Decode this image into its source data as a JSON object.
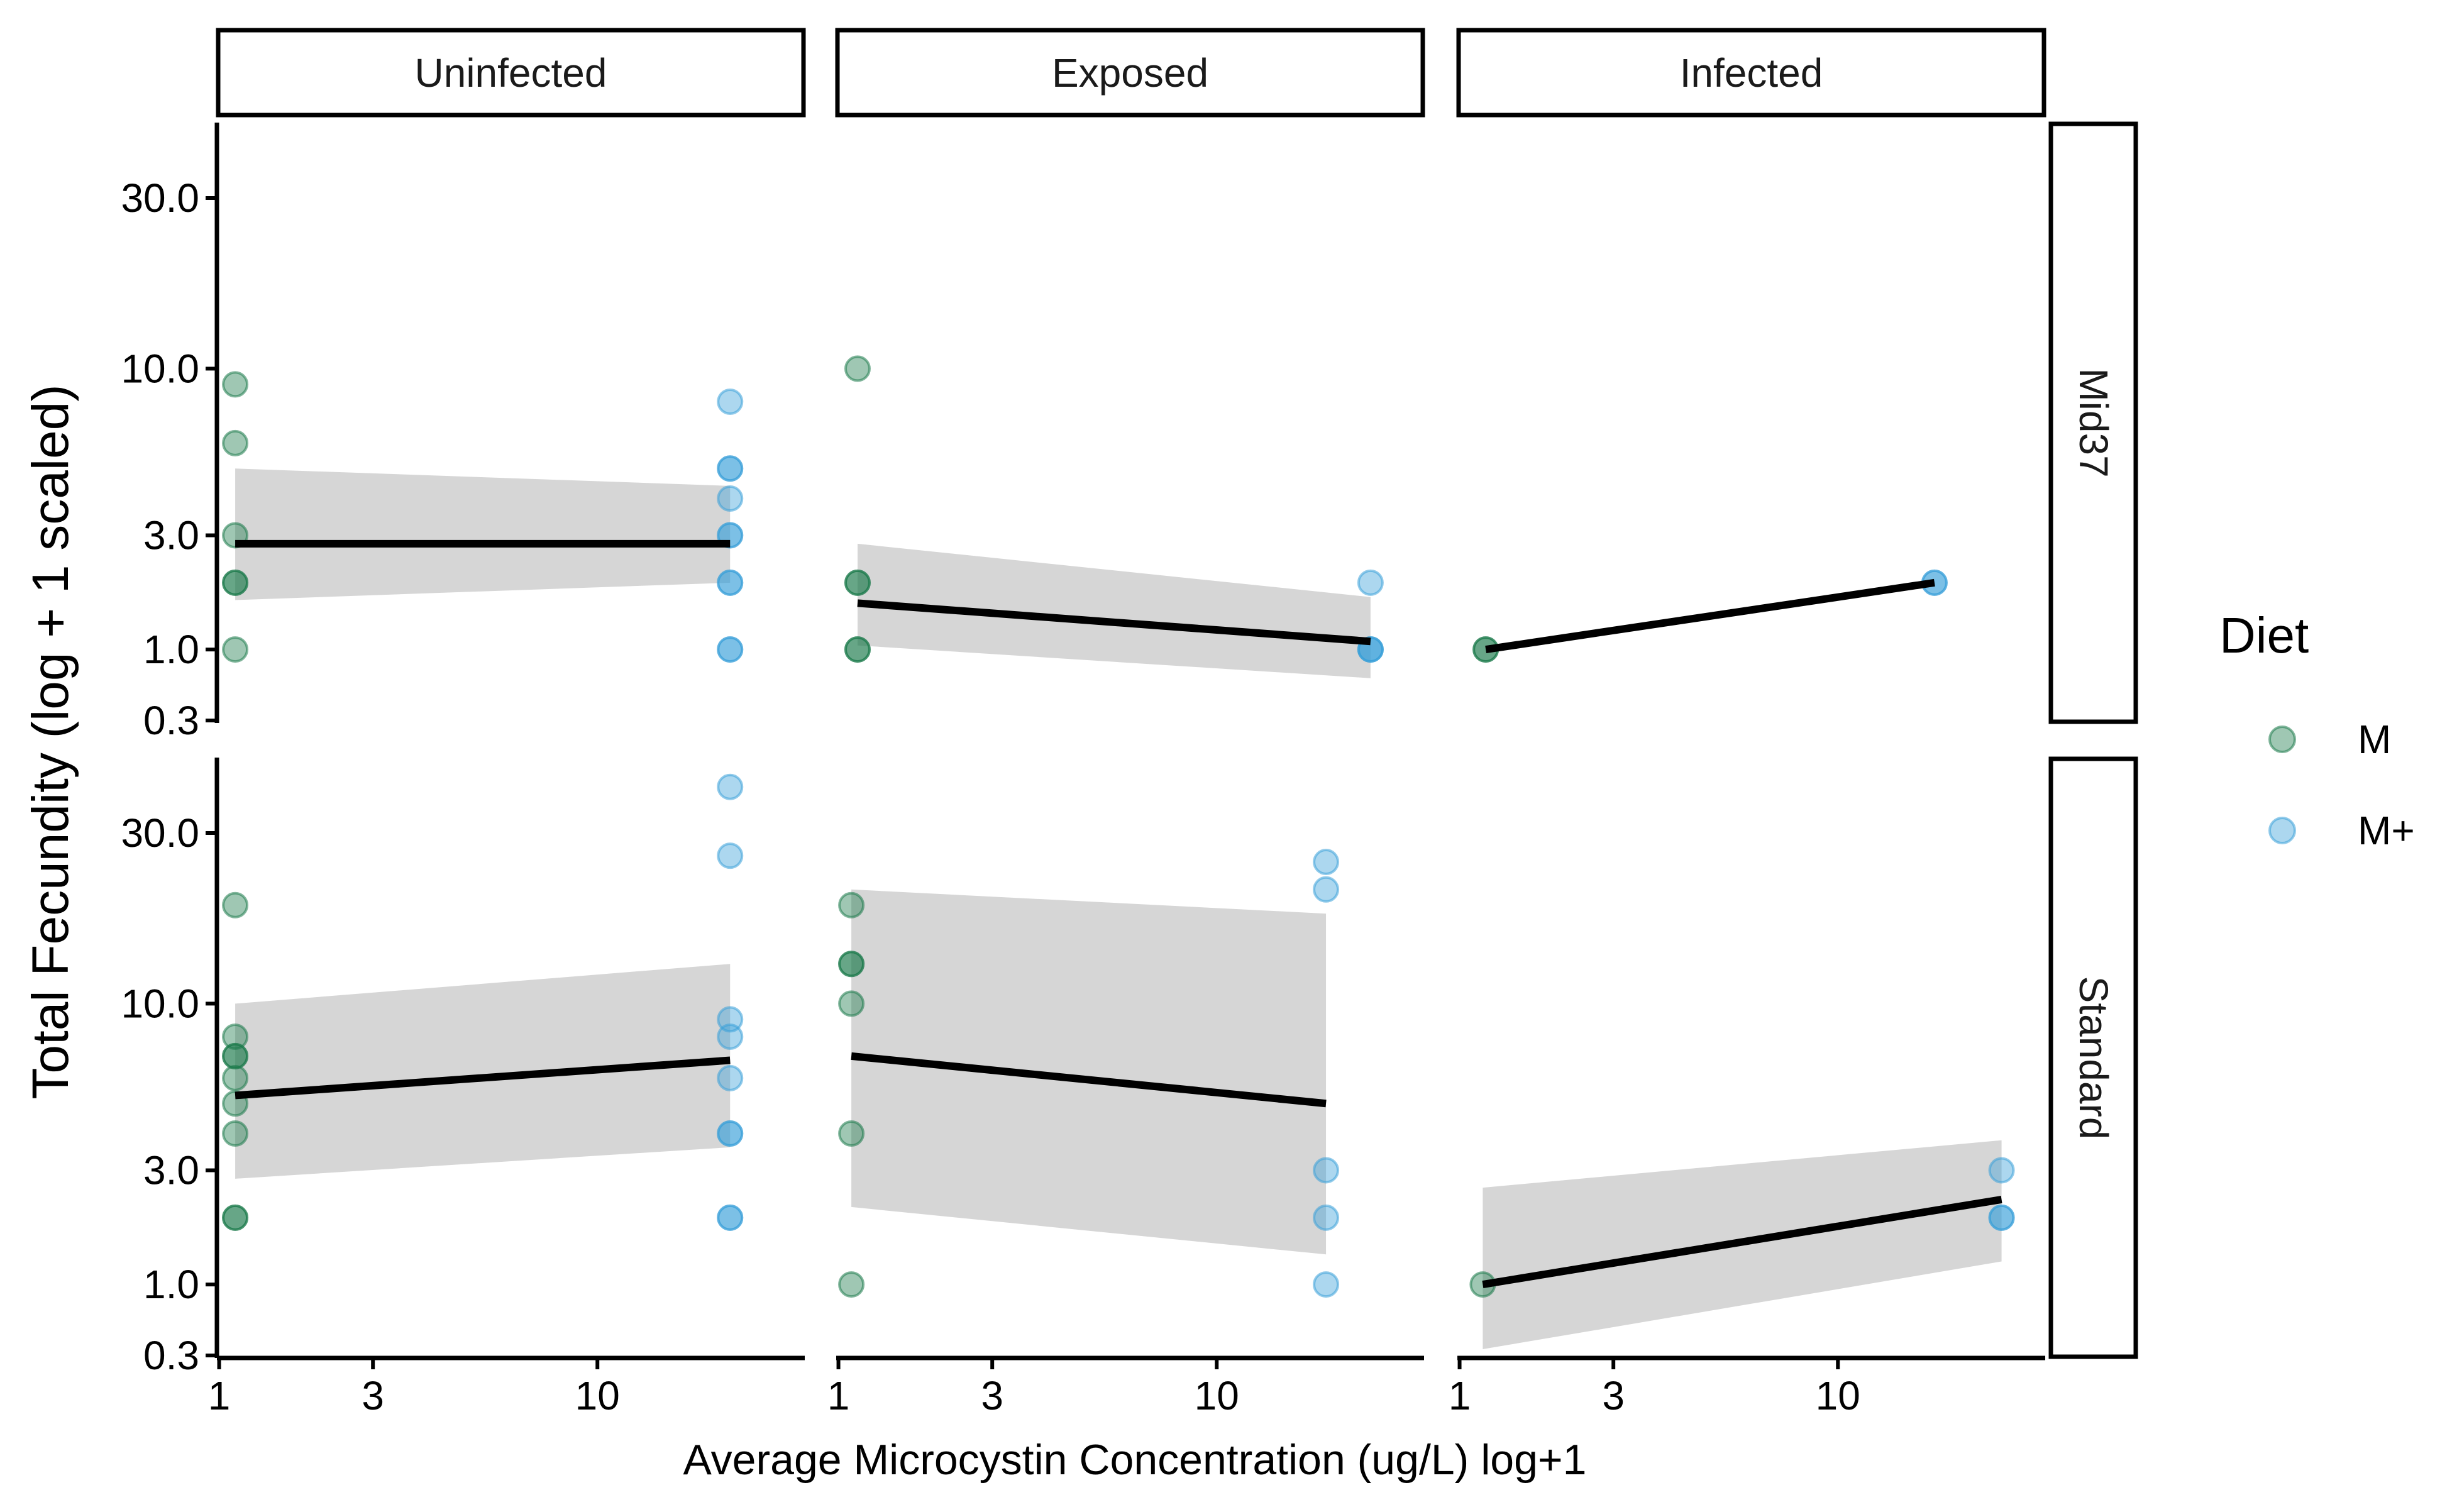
{
  "chart_data": {
    "type": "scatter",
    "title": "",
    "xlabel": "Average Microcystin Concentration (ug/L) log+1",
    "ylabel": "Total Fecundity (log + 1 scaled)",
    "x_scale": "log(x+1)",
    "y_scale": "log(y+1)",
    "x_ticks": [
      1,
      3,
      10
    ],
    "y_ticks": [
      0.3,
      1.0,
      3.0,
      10.0,
      30.0
    ],
    "y_tick_labels": [
      "0.3",
      "1.0",
      "3.0",
      "10.0",
      "30.0"
    ],
    "x_tick_labels": [
      "1",
      "3",
      "10"
    ],
    "xlim": [
      0.98,
      27
    ],
    "ylim": [
      0.28,
      48
    ],
    "columns": [
      "Uninfected",
      "Exposed",
      "Infected"
    ],
    "rows": [
      "Mid37",
      "Standard"
    ],
    "legend": {
      "title": "Diet",
      "position": "right",
      "entries": [
        {
          "label": "M",
          "color": "#1b7a4a"
        },
        {
          "label": "M+",
          "color": "#3aa0d8"
        }
      ]
    },
    "colors": {
      "M": "#1b7a4a",
      "M+": "#3aa0d8",
      "ribbon": "#d6d6d6",
      "fit": "#000000"
    },
    "panels": [
      {
        "row": "Mid37",
        "column": "Uninfected",
        "points": [
          {
            "diet": "M",
            "x": 1.15,
            "y": 9
          },
          {
            "diet": "M",
            "x": 1.15,
            "y": 6
          },
          {
            "diet": "M",
            "x": 1.15,
            "y": 3
          },
          {
            "diet": "M",
            "x": 1.15,
            "y": 2
          },
          {
            "diet": "M",
            "x": 1.15,
            "y": 2
          },
          {
            "diet": "M",
            "x": 1.15,
            "y": 1
          },
          {
            "diet": "M+",
            "x": 19,
            "y": 8
          },
          {
            "diet": "M+",
            "x": 19,
            "y": 5
          },
          {
            "diet": "M+",
            "x": 19,
            "y": 5
          },
          {
            "diet": "M+",
            "x": 19,
            "y": 4
          },
          {
            "diet": "M+",
            "x": 19,
            "y": 3
          },
          {
            "diet": "M+",
            "x": 19,
            "y": 3
          },
          {
            "diet": "M+",
            "x": 19,
            "y": 2
          },
          {
            "diet": "M+",
            "x": 19,
            "y": 2
          },
          {
            "diet": "M+",
            "x": 19,
            "y": 1
          },
          {
            "diet": "M+",
            "x": 19,
            "y": 1
          }
        ],
        "fit": {
          "x": [
            1.15,
            19
          ],
          "y": [
            2.8,
            2.8
          ],
          "lower": [
            1.7,
            2.0
          ],
          "upper": [
            5.0,
            4.4
          ]
        }
      },
      {
        "row": "Mid37",
        "column": "Exposed",
        "points": [
          {
            "diet": "M",
            "x": 1.18,
            "y": 10
          },
          {
            "diet": "M",
            "x": 1.18,
            "y": 2
          },
          {
            "diet": "M",
            "x": 1.18,
            "y": 2
          },
          {
            "diet": "M",
            "x": 1.18,
            "y": 1
          },
          {
            "diet": "M",
            "x": 1.18,
            "y": 1
          },
          {
            "diet": "M+",
            "x": 21,
            "y": 2
          },
          {
            "diet": "M+",
            "x": 21,
            "y": 1
          },
          {
            "diet": "M+",
            "x": 21,
            "y": 1
          },
          {
            "diet": "M+",
            "x": 21,
            "y": 1
          }
        ],
        "fit": {
          "x": [
            1.18,
            21
          ],
          "y": [
            1.65,
            1.1
          ],
          "lower": [
            1.05,
            0.68
          ],
          "upper": [
            2.8,
            1.75
          ]
        }
      },
      {
        "row": "Mid37",
        "column": "Infected",
        "points": [
          {
            "diet": "M",
            "x": 1.25,
            "y": 1
          },
          {
            "diet": "M",
            "x": 1.25,
            "y": 1
          },
          {
            "diet": "M+",
            "x": 16,
            "y": 2
          },
          {
            "diet": "M+",
            "x": 16,
            "y": 2
          }
        ],
        "fit": {
          "x": [
            1.25,
            16
          ],
          "y": [
            1.0,
            2.0
          ]
        }
      },
      {
        "row": "Standard",
        "column": "Uninfected",
        "points": [
          {
            "diet": "M",
            "x": 1.15,
            "y": 19
          },
          {
            "diet": "M",
            "x": 1.15,
            "y": 8
          },
          {
            "diet": "M",
            "x": 1.15,
            "y": 7
          },
          {
            "diet": "M",
            "x": 1.15,
            "y": 7
          },
          {
            "diet": "M",
            "x": 1.15,
            "y": 6
          },
          {
            "diet": "M",
            "x": 1.15,
            "y": 5
          },
          {
            "diet": "M",
            "x": 1.15,
            "y": 4
          },
          {
            "diet": "M",
            "x": 1.15,
            "y": 2
          },
          {
            "diet": "M",
            "x": 1.15,
            "y": 2
          },
          {
            "diet": "M+",
            "x": 19,
            "y": 40
          },
          {
            "diet": "M+",
            "x": 19,
            "y": 26
          },
          {
            "diet": "M+",
            "x": 19,
            "y": 9
          },
          {
            "diet": "M+",
            "x": 19,
            "y": 8
          },
          {
            "diet": "M+",
            "x": 19,
            "y": 6
          },
          {
            "diet": "M+",
            "x": 19,
            "y": 4
          },
          {
            "diet": "M+",
            "x": 19,
            "y": 4
          },
          {
            "diet": "M+",
            "x": 19,
            "y": 2
          },
          {
            "diet": "M+",
            "x": 19,
            "y": 2
          }
        ],
        "fit": {
          "x": [
            1.15,
            19
          ],
          "y": [
            5.3,
            6.8
          ],
          "lower": [
            2.8,
            3.6
          ],
          "upper": [
            10.0,
            13.0
          ]
        }
      },
      {
        "row": "Standard",
        "column": "Exposed",
        "points": [
          {
            "diet": "M",
            "x": 1.12,
            "y": 19
          },
          {
            "diet": "M",
            "x": 1.12,
            "y": 13
          },
          {
            "diet": "M",
            "x": 1.12,
            "y": 13
          },
          {
            "diet": "M",
            "x": 1.12,
            "y": 10
          },
          {
            "diet": "M",
            "x": 1.12,
            "y": 4
          },
          {
            "diet": "M",
            "x": 1.12,
            "y": 1
          },
          {
            "diet": "M+",
            "x": 17,
            "y": 25
          },
          {
            "diet": "M+",
            "x": 17,
            "y": 21
          },
          {
            "diet": "M+",
            "x": 17,
            "y": 3
          },
          {
            "diet": "M+",
            "x": 17,
            "y": 2
          },
          {
            "diet": "M+",
            "x": 17,
            "y": 1
          }
        ],
        "fit": {
          "x": [
            1.12,
            17
          ],
          "y": [
            7.0,
            5.0
          ],
          "lower": [
            2.2,
            1.4
          ],
          "upper": [
            21.0,
            18.0
          ]
        }
      },
      {
        "row": "Standard",
        "column": "Infected",
        "points": [
          {
            "diet": "M",
            "x": 1.22,
            "y": 1
          },
          {
            "diet": "M+",
            "x": 22,
            "y": 3
          },
          {
            "diet": "M+",
            "x": 22,
            "y": 2
          },
          {
            "diet": "M+",
            "x": 22,
            "y": 2
          }
        ],
        "fit": {
          "x": [
            1.22,
            22
          ],
          "y": [
            1.0,
            2.35
          ],
          "lower": [
            0.35,
            1.3
          ],
          "upper": [
            2.6,
            3.8
          ]
        }
      }
    ]
  }
}
